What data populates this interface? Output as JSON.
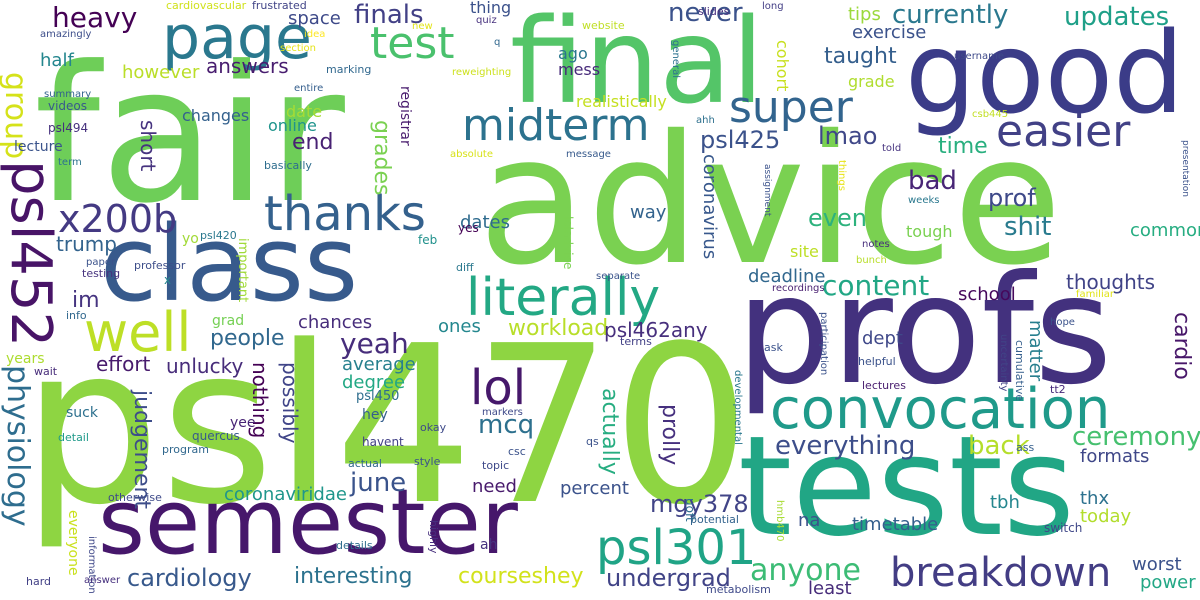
{
  "words": [
    {
      "id": "psl470",
      "text": "psl470",
      "color": "#8ed542"
    },
    {
      "id": "advice",
      "text": "advice",
      "color": "#7ad151"
    },
    {
      "id": "fair",
      "text": "fair",
      "color": "#6ece58"
    },
    {
      "id": "good",
      "text": "good",
      "color": "#3b3c88"
    },
    {
      "id": "profs",
      "text": "profs",
      "color": "#43317e"
    },
    {
      "id": "tests",
      "text": "tests",
      "color": "#21a685"
    },
    {
      "id": "final",
      "text": "final",
      "color": "#54c568"
    },
    {
      "id": "class",
      "text": "class",
      "color": "#375a8c"
    },
    {
      "id": "semester",
      "text": "semester",
      "color": "#46176b"
    },
    {
      "id": "convocation",
      "text": "convocation",
      "color": "#1f9a8a"
    },
    {
      "id": "literally",
      "text": "literally",
      "color": "#23a884"
    },
    {
      "id": "breakdown",
      "text": "breakdown",
      "color": "#433d84"
    },
    {
      "id": "midterm",
      "text": "midterm",
      "color": "#2c728e"
    },
    {
      "id": "test",
      "text": "test",
      "color": "#4ac16d"
    },
    {
      "id": "page",
      "text": "page",
      "color": "#2a788e"
    },
    {
      "id": "easier",
      "text": "easier",
      "color": "#424186"
    },
    {
      "id": "super",
      "text": "super",
      "color": "#32648e"
    },
    {
      "id": "thanks",
      "text": "thanks",
      "color": "#34618d"
    },
    {
      "id": "psl452",
      "text": "psl452",
      "color": "#481467"
    },
    {
      "id": "x200b",
      "text": "x200b",
      "color": "#443a83"
    },
    {
      "id": "group",
      "text": "group",
      "color": "#d5e21a"
    },
    {
      "id": "well",
      "text": "well",
      "color": "#bddf26"
    },
    {
      "id": "lol",
      "text": "lol",
      "color": "#46186b"
    },
    {
      "id": "psl301",
      "text": "psl301",
      "color": "#20a486"
    },
    {
      "id": "physiology",
      "text": "physiology",
      "color": "#2e6d8e"
    },
    {
      "id": "heavy",
      "text": "heavy",
      "color": "#440154"
    },
    {
      "id": "finals",
      "text": "finals",
      "color": "#424086"
    },
    {
      "id": "currently",
      "text": "currently",
      "color": "#2a788e"
    },
    {
      "id": "updates",
      "text": "updates",
      "color": "#1fa088"
    },
    {
      "id": "never",
      "text": "never",
      "color": "#3b528b"
    },
    {
      "id": "content",
      "text": "content",
      "color": "#22a785"
    },
    {
      "id": "ceremony",
      "text": "ceremony",
      "color": "#46c06f"
    },
    {
      "id": "everything",
      "text": "everything",
      "color": "#3d4e8a"
    },
    {
      "id": "back",
      "text": "back",
      "color": "#b5de2b"
    },
    {
      "id": "anyone",
      "text": "anyone",
      "color": "#3cbc75"
    },
    {
      "id": "undergrad",
      "text": "undergrad",
      "color": "#414487"
    },
    {
      "id": "cardiology",
      "text": "cardiology",
      "color": "#38598c"
    },
    {
      "id": "interesting",
      "text": "interesting",
      "color": "#2c728e"
    },
    {
      "id": "courseshey",
      "text": "courseshey",
      "color": "#d2e21b"
    },
    {
      "id": "mgy378",
      "text": "mgy378",
      "color": "#414487"
    },
    {
      "id": "yeah",
      "text": "yeah",
      "color": "#472d7b"
    },
    {
      "id": "june",
      "text": "june",
      "color": "#3a538b"
    },
    {
      "id": "mcq",
      "text": "mcq",
      "color": "#2d708e"
    },
    {
      "id": "lmao",
      "text": "lmao",
      "color": "#3f4788"
    },
    {
      "id": "time",
      "text": "time",
      "color": "#29af7f"
    },
    {
      "id": "bad",
      "text": "bad",
      "color": "#482576"
    },
    {
      "id": "prof",
      "text": "prof",
      "color": "#3e4989"
    },
    {
      "id": "shit",
      "text": "shit",
      "color": "#297b8e"
    },
    {
      "id": "even",
      "text": "even",
      "color": "#2db27d"
    },
    {
      "id": "taught",
      "text": "taught",
      "color": "#355f8d"
    },
    {
      "id": "psl425",
      "text": "psl425",
      "color": "#3b528b"
    },
    {
      "id": "end",
      "text": "end",
      "color": "#482173"
    },
    {
      "id": "grades",
      "text": "grades",
      "color": "#7ad151"
    },
    {
      "id": "answers",
      "text": "answers",
      "color": "#481d6f"
    },
    {
      "id": "short",
      "text": "short",
      "color": "#46337f"
    },
    {
      "id": "trump",
      "text": "trump",
      "color": "#33638d"
    },
    {
      "id": "im",
      "text": "im",
      "color": "#463480"
    },
    {
      "id": "people",
      "text": "people",
      "color": "#31688e"
    },
    {
      "id": "effort",
      "text": "effort",
      "color": "#481b6d"
    },
    {
      "id": "unlucky",
      "text": "unlucky",
      "color": "#472c7a"
    },
    {
      "id": "judgement",
      "text": "judgement",
      "color": "#3d4d8a"
    },
    {
      "id": "nothing",
      "text": "nothing",
      "color": "#440154"
    },
    {
      "id": "possibly",
      "text": "possibly",
      "color": "#404588"
    },
    {
      "id": "chances",
      "text": "chances",
      "color": "#472d7b"
    },
    {
      "id": "workload",
      "text": "workload",
      "color": "#b8de29"
    },
    {
      "id": "psl462any",
      "text": "psl462any",
      "color": "#472f7d"
    },
    {
      "id": "average",
      "text": "average",
      "color": "#27808e"
    },
    {
      "id": "degree",
      "text": "degree",
      "color": "#22a884"
    },
    {
      "id": "prolly",
      "text": "prolly",
      "color": "#46307e"
    },
    {
      "id": "actually",
      "text": "actually",
      "color": "#27ad81"
    },
    {
      "id": "percent",
      "text": "percent",
      "color": "#3b528b"
    },
    {
      "id": "need",
      "text": "need",
      "color": "#481a6c"
    },
    {
      "id": "coronaviridae",
      "text": "coronaviridae",
      "color": "#1f968b"
    },
    {
      "id": "dates",
      "text": "dates",
      "color": "#2f6b8e"
    },
    {
      "id": "ones",
      "text": "ones",
      "color": "#24878e"
    },
    {
      "id": "way",
      "text": "way",
      "color": "#33638d"
    },
    {
      "id": "deadline",
      "text": "deadline",
      "color": "#31678e"
    },
    {
      "id": "coronavirus",
      "text": "coronavirus",
      "color": "#38588c"
    },
    {
      "id": "dept",
      "text": "dept",
      "color": "#3f4889"
    },
    {
      "id": "matter",
      "text": "matter",
      "color": "#277f8e"
    },
    {
      "id": "school",
      "text": "school",
      "color": "#46085c"
    },
    {
      "id": "thoughts",
      "text": "thoughts",
      "color": "#404387"
    },
    {
      "id": "formats",
      "text": "formats",
      "color": "#3f4788"
    },
    {
      "id": "cardio",
      "text": "cardio",
      "color": "#481769"
    },
    {
      "id": "tbh",
      "text": "tbh",
      "color": "#24868e"
    },
    {
      "id": "thx",
      "text": "thx",
      "color": "#2c718e"
    },
    {
      "id": "today",
      "text": "today",
      "color": "#b2dd2d"
    },
    {
      "id": "worst",
      "text": "worst",
      "color": "#3b528b"
    },
    {
      "id": "power",
      "text": "power",
      "color": "#22a785"
    },
    {
      "id": "timetable",
      "text": "timetable",
      "color": "#355f8d"
    },
    {
      "id": "least",
      "text": "least",
      "color": "#472c7a"
    },
    {
      "id": "na",
      "text": "na",
      "color": "#3b528b"
    },
    {
      "id": "common",
      "text": "common",
      "color": "#26ad81"
    },
    {
      "id": "tough",
      "text": "tough",
      "color": "#7ad151"
    },
    {
      "id": "site",
      "text": "site",
      "color": "#bddf26"
    },
    {
      "id": "tips",
      "text": "tips",
      "color": "#9bd93c"
    },
    {
      "id": "exercise",
      "text": "exercise",
      "color": "#3b528b"
    },
    {
      "id": "grade",
      "text": "grade",
      "color": "#b0dd2f"
    },
    {
      "id": "space",
      "text": "space",
      "color": "#3e4a89"
    },
    {
      "id": "half",
      "text": "half",
      "color": "#24868e"
    },
    {
      "id": "however",
      "text": "however",
      "color": "#bade28"
    },
    {
      "id": "changes",
      "text": "changes",
      "color": "#34618d"
    },
    {
      "id": "online",
      "text": "online",
      "color": "#1f948c"
    },
    {
      "id": "date",
      "text": "date",
      "color": "#a5db36"
    },
    {
      "id": "realistically",
      "text": "realistically",
      "color": "#c5e021"
    },
    {
      "id": "ago",
      "text": "ago",
      "color": "#2a768e"
    },
    {
      "id": "mess",
      "text": "mess",
      "color": "#472a7a"
    },
    {
      "id": "thing",
      "text": "thing",
      "color": "#3b518b"
    },
    {
      "id": "registrar",
      "text": "registrar",
      "color": "#481b6d"
    },
    {
      "id": "cohort",
      "text": "cohort",
      "color": "#c8e020"
    },
    {
      "id": "lecture",
      "text": "lecture",
      "color": "#3a538b"
    },
    {
      "id": "psl494",
      "text": "psl494",
      "color": "#46317e"
    },
    {
      "id": "videos",
      "text": "videos",
      "color": "#38598c"
    },
    {
      "id": "summary",
      "text": "summary",
      "color": "#33638d"
    },
    {
      "id": "amazingly",
      "text": "amazingly",
      "color": "#3d4e8a"
    },
    {
      "id": "cardiovascular",
      "text": "cardiovascular",
      "color": "#d0e11c"
    },
    {
      "id": "frustrated",
      "text": "frustrated",
      "color": "#414487"
    },
    {
      "id": "idea",
      "text": "idea",
      "color": "#fde725"
    },
    {
      "id": "section",
      "text": "section",
      "color": "#e5e419"
    },
    {
      "id": "marking",
      "text": "marking",
      "color": "#31688e"
    },
    {
      "id": "entire",
      "text": "entire",
      "color": "#355f8d"
    },
    {
      "id": "basically",
      "text": "basically",
      "color": "#2e6e8e"
    },
    {
      "id": "psl420",
      "text": "psl420",
      "color": "#2a788e"
    },
    {
      "id": "yo",
      "text": "yo",
      "color": "#a2da37"
    },
    {
      "id": "important",
      "text": "important",
      "color": "#a0da39"
    },
    {
      "id": "feb",
      "text": "feb",
      "color": "#21918c"
    },
    {
      "id": "yes",
      "text": "yes",
      "color": "#440154"
    },
    {
      "id": "diff",
      "text": "diff",
      "color": "#2a788e"
    },
    {
      "id": "professor",
      "text": "professor",
      "color": "#3d4e8a"
    },
    {
      "id": "testing",
      "text": "testing",
      "color": "#46327e"
    },
    {
      "id": "paper",
      "text": "paper",
      "color": "#3b528b"
    },
    {
      "id": "x",
      "text": "x",
      "color": "#24868e"
    },
    {
      "id": "info",
      "text": "info",
      "color": "#31688e"
    },
    {
      "id": "grad",
      "text": "grad",
      "color": "#75d054"
    },
    {
      "id": "years",
      "text": "years",
      "color": "#addc30"
    },
    {
      "id": "wait",
      "text": "wait",
      "color": "#472c7a"
    },
    {
      "id": "suck",
      "text": "suck",
      "color": "#2d708e"
    },
    {
      "id": "yee",
      "text": "yee",
      "color": "#482475"
    },
    {
      "id": "hey",
      "text": "hey",
      "color": "#355f8d"
    },
    {
      "id": "psl450",
      "text": "psl450",
      "color": "#2e6e8e"
    },
    {
      "id": "quercus",
      "text": "quercus",
      "color": "#375a8c"
    },
    {
      "id": "detail",
      "text": "detail",
      "color": "#1f9a8a"
    },
    {
      "id": "program",
      "text": "program",
      "color": "#31688e"
    },
    {
      "id": "havent",
      "text": "havent",
      "color": "#424186"
    },
    {
      "id": "okay",
      "text": "okay",
      "color": "#3e4a89"
    },
    {
      "id": "qs",
      "text": "qs",
      "color": "#3b528b"
    },
    {
      "id": "csc",
      "text": "csc",
      "color": "#3b528b"
    },
    {
      "id": "topic",
      "text": "topic",
      "color": "#3e4989"
    },
    {
      "id": "actual",
      "text": "actual",
      "color": "#31688e"
    },
    {
      "id": "style",
      "text": "style",
      "color": "#3a538b"
    },
    {
      "id": "markers",
      "text": "markers",
      "color": "#3e4a89"
    },
    {
      "id": "terms",
      "text": "terms",
      "color": "#424086"
    },
    {
      "id": "otherwise",
      "text": "otherwise",
      "color": "#3e4a89"
    },
    {
      "id": "everyone",
      "text": "everyone",
      "color": "#cae11f"
    },
    {
      "id": "information",
      "text": "information",
      "color": "#3f4889"
    },
    {
      "id": "hard",
      "text": "hard",
      "color": "#424186"
    },
    {
      "id": "answer",
      "text": "answer",
      "color": "#46307e"
    },
    {
      "id": "details",
      "text": "details",
      "color": "#2f6c8e"
    },
    {
      "id": "highly",
      "text": "highly",
      "color": "#472f7d"
    },
    {
      "id": "uoft",
      "text": "uoft",
      "color": "#2e6d8e"
    },
    {
      "id": "potential",
      "text": "potential",
      "color": "#33638d"
    },
    {
      "id": "hmb470",
      "text": "hmb470",
      "color": "#a8db34"
    },
    {
      "id": "developmental",
      "text": "developmental",
      "color": "#2a788e"
    },
    {
      "id": "metabolism",
      "text": "metabolism",
      "color": "#3e4989"
    },
    {
      "id": "ass",
      "text": "ass",
      "color": "#355f8d"
    },
    {
      "id": "switch",
      "text": "switch",
      "color": "#3f4788"
    },
    {
      "id": "ah",
      "text": "ah",
      "color": "#46337f"
    },
    {
      "id": "lectures",
      "text": "lectures",
      "color": "#481c6e"
    },
    {
      "id": "helpful",
      "text": "helpful",
      "color": "#3b528b"
    },
    {
      "id": "tt2",
      "text": "tt2",
      "color": "#472a7a"
    },
    {
      "id": "cumulative",
      "text": "cumulative",
      "color": "#355f8d"
    },
    {
      "id": "uncertainty",
      "text": "uncertainty",
      "color": "#414487"
    },
    {
      "id": "participation",
      "text": "participation",
      "color": "#3b528b"
    },
    {
      "id": "ask",
      "text": "ask",
      "color": "#3b528b"
    },
    {
      "id": "recordings",
      "text": "recordings",
      "color": "#481f70"
    },
    {
      "id": "separate",
      "text": "separate",
      "color": "#3a538b"
    },
    {
      "id": "loladvice",
      "text": "loladvice",
      "color": "#7ad151"
    },
    {
      "id": "notes",
      "text": "notes",
      "color": "#472e7c"
    },
    {
      "id": "bunch",
      "text": "bunch",
      "color": "#b8de29"
    },
    {
      "id": "things",
      "text": "things",
      "color": "#e7e419"
    },
    {
      "id": "assignment",
      "text": "assignment",
      "color": "#3b528b"
    },
    {
      "id": "weeks",
      "text": "weeks",
      "color": "#2a788e"
    },
    {
      "id": "told",
      "text": "told",
      "color": "#46337f"
    },
    {
      "id": "general",
      "text": "general",
      "color": "#2c728e"
    },
    {
      "id": "ahh",
      "text": "ahh",
      "color": "#2d708e"
    },
    {
      "id": "slides",
      "text": "slides",
      "color": "#46307e"
    },
    {
      "id": "long",
      "text": "long",
      "color": "#433e85"
    },
    {
      "id": "username",
      "text": "username",
      "color": "#3e4989"
    },
    {
      "id": "csb445",
      "text": "csb445",
      "color": "#c2df23"
    },
    {
      "id": "website",
      "text": "website",
      "color": "#c0df25"
    },
    {
      "id": "message",
      "text": "message",
      "color": "#375a8c"
    },
    {
      "id": "absolute",
      "text": "absolute",
      "color": "#d8e219"
    },
    {
      "id": "reweighting",
      "text": "reweighting",
      "color": "#cde11d"
    },
    {
      "id": "new",
      "text": "new",
      "color": "#e2e418"
    },
    {
      "id": "q",
      "text": "q",
      "color": "#31688e"
    },
    {
      "id": "quiz",
      "text": "quiz",
      "color": "#46307e"
    },
    {
      "id": "term",
      "text": "term",
      "color": "#2c718e"
    },
    {
      "id": "hope",
      "text": "hope",
      "color": "#3b528b"
    },
    {
      "id": "familiar",
      "text": "familiar",
      "color": "#e1e318"
    },
    {
      "id": "presentation",
      "text": "presentation",
      "color": "#3b528b"
    }
  ]
}
